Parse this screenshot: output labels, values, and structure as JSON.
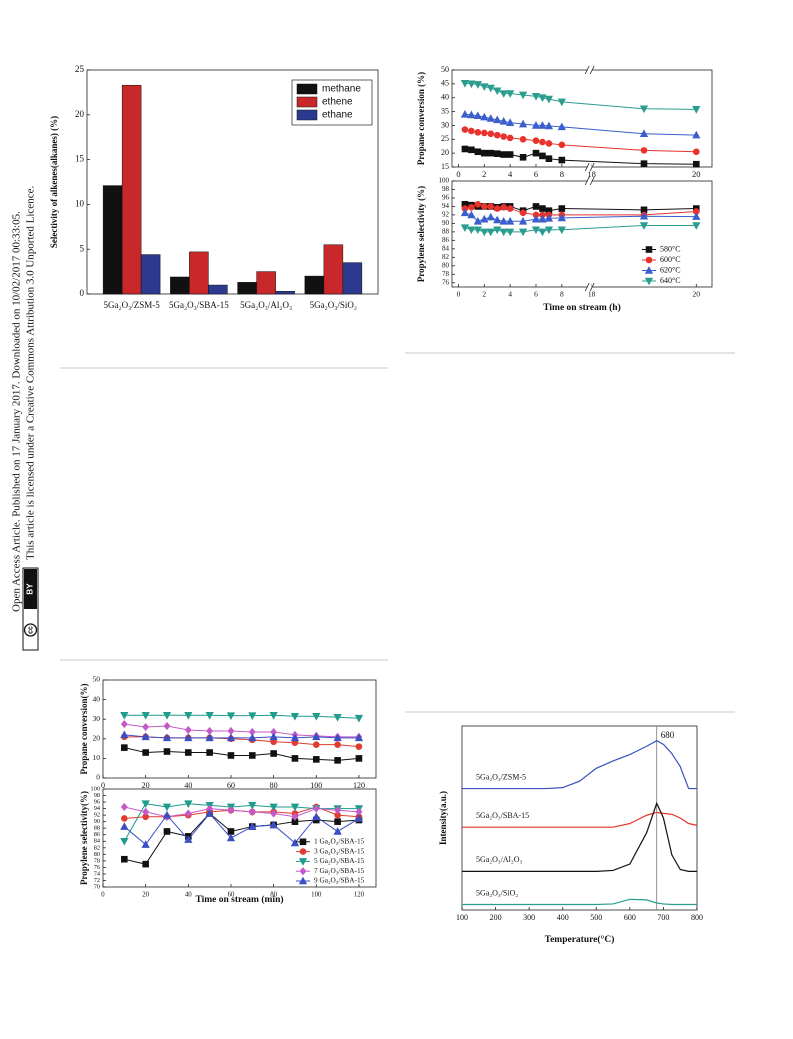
{
  "side_note": {
    "line1": "Open Access Article. Published on 17 January 2017. Downloaded on 10/02/2017 00:33:05.",
    "line2": "This article is licensed under a Creative Commons Attribution 3.0 Unported Licence.",
    "badge_icon": "cc",
    "badge": "BY"
  },
  "chart_data": [
    {
      "type": "bar",
      "ylabel": "Selectivity of alkenes(alkanes) (%)",
      "categories": [
        "5Ga₂O₃/ZSM-5",
        "5Ga₂O₃/SBA-15",
        "5Ga₂O₃/Al₂O₃",
        "5Ga₂O₃/SiO₂"
      ],
      "series": [
        {
          "name": "methane",
          "color": "#111111",
          "values": [
            12.1,
            1.9,
            1.3,
            2.0
          ]
        },
        {
          "name": "ethene",
          "color": "#c8282a",
          "values": [
            23.3,
            4.7,
            2.5,
            5.5
          ]
        },
        {
          "name": "ethane",
          "color": "#2b3a8f",
          "values": [
            4.4,
            1.0,
            0.3,
            3.5
          ]
        }
      ],
      "ylim": [
        0,
        25
      ],
      "yticks": [
        0,
        5,
        10,
        15,
        20,
        25
      ],
      "legend": "upper right"
    },
    {
      "type": "line",
      "ylabel": "Propane conversion (%)",
      "x": [
        0.5,
        1,
        1.5,
        2,
        2.5,
        3,
        3.5,
        4,
        5,
        6,
        6.5,
        7,
        8,
        19,
        20
      ],
      "xlim": [
        -0.5,
        20.3
      ],
      "xbreak": [
        10,
        18
      ],
      "xticks": [
        0,
        2,
        4,
        6,
        8,
        18,
        20
      ],
      "ylim": [
        15,
        50
      ],
      "yticks": [
        15,
        20,
        25,
        30,
        35,
        40,
        45,
        50
      ],
      "series": [
        {
          "color": "#111111",
          "marker": "square",
          "values": [
            21.5,
            21.2,
            20.5,
            20,
            20,
            19.8,
            19.5,
            19.5,
            18.5,
            20,
            19,
            18,
            17.5,
            16.2,
            16
          ]
        },
        {
          "color": "#e8322c",
          "marker": "circle",
          "values": [
            28.5,
            28,
            27.5,
            27.3,
            27,
            26.5,
            26,
            25.5,
            25,
            24.5,
            24,
            23.5,
            23,
            21,
            20.5
          ]
        },
        {
          "color": "#3a5fcd",
          "marker": "triangle-up",
          "values": [
            34,
            33.8,
            33.5,
            33,
            32.5,
            32,
            31.5,
            31,
            30.5,
            30,
            30,
            29.8,
            29.5,
            27,
            26.5
          ]
        },
        {
          "color": "#2a9d8f",
          "marker": "triangle-down",
          "values": [
            45.2,
            45,
            44.8,
            44,
            43.5,
            42.5,
            41.5,
            41.5,
            41,
            40.5,
            40,
            39.5,
            38.5,
            36,
            35.8
          ]
        }
      ]
    },
    {
      "type": "line",
      "ylabel": "Propylene selectivity (%)",
      "xlabel": "Time on stream (h)",
      "x": [
        0.5,
        1,
        1.5,
        2,
        2.5,
        3,
        3.5,
        4,
        5,
        6,
        6.5,
        7,
        8,
        19,
        20
      ],
      "xlim": [
        -0.5,
        20.3
      ],
      "xbreak": [
        10,
        18
      ],
      "xticks": [
        0,
        2,
        4,
        6,
        8,
        18,
        20
      ],
      "ylim": [
        75,
        100
      ],
      "yticks": [
        76,
        78,
        80,
        82,
        84,
        86,
        88,
        90,
        92,
        94,
        96,
        98,
        100
      ],
      "legend": "lower right",
      "series": [
        {
          "name": "580°C",
          "color": "#111111",
          "marker": "square",
          "values": [
            94.5,
            94.3,
            94,
            94,
            94,
            93.8,
            94,
            94,
            93,
            94,
            93.5,
            93,
            93.5,
            93.2,
            93.5
          ]
        },
        {
          "name": "600°C",
          "color": "#e8322c",
          "marker": "circle",
          "values": [
            93.5,
            93.8,
            94.5,
            94,
            94,
            93.5,
            93.8,
            93.5,
            92.5,
            92,
            92,
            92,
            92,
            92,
            92.8
          ]
        },
        {
          "name": "620°C",
          "color": "#3a5fcd",
          "marker": "triangle-up",
          "values": [
            92.5,
            92,
            90.5,
            91,
            91.5,
            90.8,
            90.5,
            90.5,
            90.5,
            91,
            91,
            91.2,
            91.3,
            91.7,
            91.6
          ]
        },
        {
          "name": "640°C",
          "color": "#2a9d8f",
          "marker": "triangle-down",
          "values": [
            89,
            88.5,
            88.5,
            88,
            88,
            88.5,
            88,
            88,
            88,
            88.5,
            88,
            88.5,
            88.5,
            89.5,
            89.5
          ]
        }
      ]
    },
    {
      "type": "line",
      "ylabel": "Propane conversion(%)",
      "x": [
        10,
        20,
        30,
        40,
        50,
        60,
        70,
        80,
        90,
        100,
        110,
        120
      ],
      "xlim": [
        0,
        128
      ],
      "xticks": [
        0,
        20,
        40,
        60,
        80,
        100,
        120
      ],
      "ylim": [
        0,
        50
      ],
      "yticks": [
        0,
        10,
        20,
        30,
        40,
        50
      ],
      "series": [
        {
          "color": "#111111",
          "marker": "square",
          "values": [
            15.5,
            13,
            13.5,
            13,
            13,
            11.5,
            11.5,
            12.5,
            10,
            9.5,
            9,
            10
          ]
        },
        {
          "color": "#e03c31",
          "marker": "circle",
          "values": [
            21,
            21,
            20.5,
            20.5,
            20.5,
            20,
            19.5,
            18.5,
            18,
            17,
            17,
            16
          ]
        },
        {
          "color": "#1f9c8c",
          "marker": "triangle-down",
          "values": [
            32,
            32,
            32,
            32,
            32,
            31.8,
            31.8,
            32,
            31.5,
            31.5,
            31,
            30.5
          ]
        },
        {
          "color": "#c45ac8",
          "marker": "diamond",
          "values": [
            27.5,
            26,
            26.5,
            24.5,
            24,
            24,
            23.5,
            23.5,
            22,
            21.5,
            21,
            21
          ]
        },
        {
          "color": "#3b4fc4",
          "marker": "triangle-up",
          "values": [
            22,
            21,
            20.5,
            20.5,
            20.5,
            20.5,
            20.5,
            21,
            20.5,
            21,
            20.5,
            20.5
          ]
        }
      ]
    },
    {
      "type": "line",
      "ylabel": "Propylene selectivity(%)",
      "xlabel": "Time on stream (min)",
      "x": [
        10,
        20,
        30,
        40,
        50,
        60,
        70,
        80,
        90,
        100,
        110,
        120
      ],
      "xlim": [
        0,
        128
      ],
      "xticks": [
        0,
        20,
        40,
        60,
        80,
        100,
        120
      ],
      "ylim": [
        70,
        100
      ],
      "yticks": [
        70,
        72,
        74,
        76,
        78,
        80,
        82,
        84,
        86,
        88,
        90,
        92,
        94,
        96,
        98,
        100
      ],
      "legend": "lower right",
      "series": [
        {
          "name": "1 Ga₂O₃/SBA-15",
          "color": "#111111",
          "marker": "square",
          "values": [
            78.5,
            77,
            87,
            85.5,
            92.5,
            87,
            88.5,
            89,
            90,
            90.5,
            90,
            90.5
          ]
        },
        {
          "name": "3 Ga₂O₃/SBA-15",
          "color": "#e03c31",
          "marker": "circle",
          "values": [
            91,
            91.5,
            91.5,
            92,
            93,
            93.5,
            93,
            93,
            92.5,
            94.5,
            92,
            91.5
          ]
        },
        {
          "name": "5 Ga₂O₃/SBA-15",
          "color": "#1f9c8c",
          "marker": "triangle-down",
          "values": [
            84,
            95.5,
            94.5,
            95.5,
            95,
            94.5,
            95,
            94.5,
            94.5,
            94,
            94,
            94
          ]
        },
        {
          "name": "7 Ga₂O₃/SBA-15",
          "color": "#c45ac8",
          "marker": "diamond",
          "values": [
            94.5,
            93,
            91.5,
            92.5,
            94,
            93.5,
            93,
            92.5,
            91.5,
            94,
            93.5,
            93
          ]
        },
        {
          "name": "9 Ga₂O₃/SBA-15",
          "color": "#3b4fc4",
          "marker": "triangle-up",
          "values": [
            88.5,
            83,
            92,
            84.5,
            92.5,
            85,
            88.5,
            89,
            83.5,
            91.5,
            87,
            91
          ]
        }
      ]
    },
    {
      "type": "line",
      "ylabel": "Intensity(a.u.)",
      "xlabel": "Temperature(°C)",
      "x": [
        100,
        200,
        300,
        350,
        400,
        450,
        500,
        550,
        600,
        650,
        680,
        700,
        725,
        750,
        775,
        800
      ],
      "xlim": [
        100,
        800
      ],
      "xticks": [
        100,
        200,
        300,
        400,
        500,
        600,
        700,
        800
      ],
      "ylim": [
        0,
        100
      ],
      "vline": 680,
      "legend": "inline",
      "series": [
        {
          "name": "5Ga₂O₃/ZSM-5",
          "color": "#3a4fc0",
          "values": [
            66,
            66,
            66,
            66,
            66.5,
            70,
            77,
            81,
            84.5,
            89,
            92,
            90,
            85,
            78,
            66,
            66
          ]
        },
        {
          "name": "5Ga₂O₃/SBA-15",
          "color": "#e8322c",
          "values": [
            45,
            45,
            45,
            45,
            45,
            45,
            45,
            45,
            47,
            51.5,
            53,
            52.5,
            52,
            50,
            47,
            46
          ]
        },
        {
          "name": "5Ga₂O₃/Al₂O₃",
          "color": "#111111",
          "values": [
            21,
            21,
            21,
            21,
            21,
            21,
            21,
            21.5,
            25,
            42,
            58,
            50,
            30,
            22,
            21,
            21
          ]
        },
        {
          "name": "5Ga₂O₃/SiO₂",
          "color": "#2a9d8f",
          "values": [
            3,
            3,
            3,
            3,
            3,
            3,
            3,
            3.3,
            5.8,
            5.5,
            3.8,
            3.3,
            3,
            3,
            3,
            3
          ]
        }
      ]
    }
  ]
}
